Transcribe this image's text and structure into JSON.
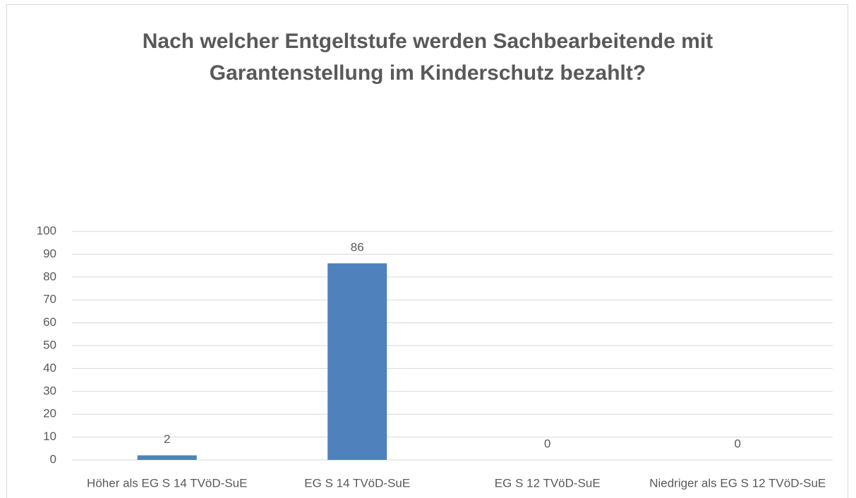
{
  "chart_data": {
    "type": "bar",
    "title": "Nach welcher Entgeltstufe werden Sachbearbeitende mit Garantenstellung im Kinderschutz bezahlt?",
    "categories": [
      "Höher als EG S 14 TVöD-SuE",
      "EG S 14 TVöD-SuE",
      "EG S 12 TVöD-SuE",
      "Niedriger als EG S 12 TVöD-SuE"
    ],
    "values": [
      2,
      86,
      0,
      0
    ],
    "color": "#4f81bd",
    "ylim": [
      0,
      100
    ],
    "yticks": [
      0,
      10,
      20,
      30,
      40,
      50,
      60,
      70,
      80,
      90,
      100
    ],
    "grid": true
  }
}
